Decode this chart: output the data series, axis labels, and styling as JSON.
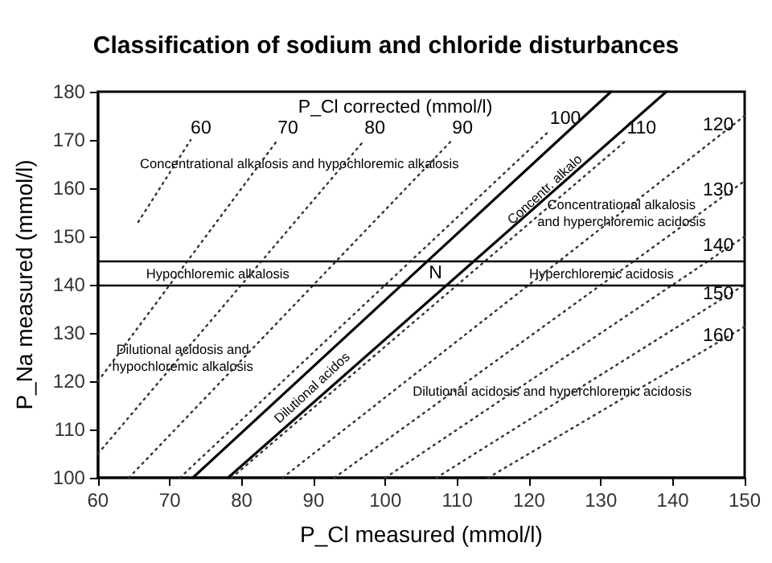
{
  "chart_data": {
    "type": "line",
    "title": "Classification of sodium and chloride disturbances",
    "xlabel": "P_Cl measured (mmol/l)",
    "ylabel": "P_Na measured (mmol/l)",
    "legend_title": "P_Cl corrected (mmol/l)",
    "xlim": [
      60,
      150
    ],
    "xticks": [
      60,
      70,
      80,
      90,
      100,
      110,
      120,
      130,
      140,
      150
    ],
    "ylim": [
      100,
      180
    ],
    "yticks": [
      100,
      110,
      120,
      130,
      140,
      150,
      160,
      170,
      180
    ],
    "grid": false,
    "legend": false,
    "marker": "none",
    "series": [
      {
        "name": "60",
        "x": [
          65.6,
          72.9
        ],
        "values": [
          153,
          170
        ],
        "color": "#333333",
        "line_style": "dotted"
      },
      {
        "name": "70",
        "x": [
          60,
          85
        ],
        "values": [
          120,
          170
        ],
        "color": "#333333",
        "line_style": "dotted"
      },
      {
        "name": "80",
        "x": [
          60,
          97.1
        ],
        "values": [
          105,
          170
        ],
        "color": "#333333",
        "line_style": "dotted"
      },
      {
        "name": "90",
        "x": [
          64.3,
          109.3
        ],
        "values": [
          100,
          170
        ],
        "color": "#333333",
        "line_style": "dotted"
      },
      {
        "name": "100",
        "x": [
          71.4,
          122.9
        ],
        "values": [
          100,
          172
        ],
        "color": "#333333",
        "line_style": "dotted"
      },
      {
        "name": "110",
        "x": [
          78.6,
          133.6
        ],
        "values": [
          100,
          170
        ],
        "color": "#333333",
        "line_style": "dotted"
      },
      {
        "name": "120",
        "x": [
          85.7,
          150
        ],
        "values": [
          100,
          175
        ],
        "color": "#333333",
        "line_style": "dotted"
      },
      {
        "name": "130",
        "x": [
          92.9,
          150
        ],
        "values": [
          100,
          161.5
        ],
        "color": "#333333",
        "line_style": "dotted"
      },
      {
        "name": "140",
        "x": [
          100,
          150
        ],
        "values": [
          100,
          150
        ],
        "color": "#333333",
        "line_style": "dotted"
      },
      {
        "name": "150",
        "x": [
          107.1,
          150
        ],
        "values": [
          100,
          140
        ],
        "color": "#333333",
        "line_style": "dotted"
      },
      {
        "name": "160",
        "x": [
          114.3,
          150
        ],
        "values": [
          100,
          131.3
        ],
        "color": "#333333",
        "line_style": "dotted"
      },
      {
        "x": [
          73.2,
          131.4
        ],
        "values": [
          100,
          180
        ],
        "color": "#000000",
        "line_style": "solid"
      },
      {
        "x": [
          78.1,
          139.1
        ],
        "values": [
          100,
          180
        ],
        "color": "#000000",
        "line_style": "solid"
      }
    ],
    "ref_lines": [
      {
        "axis": "y",
        "value": 145,
        "color": "#000000"
      },
      {
        "axis": "y",
        "value": 140,
        "color": "#000000"
      }
    ],
    "annotations": [
      "Concentrational alkalosis and hypochloremic alkalosis",
      "Hypochloremic alkalosis",
      "N",
      "Hyperchloremic acidosis",
      "Concentrational alkalosis\nand hyperchloremic acidosis",
      "Dilutional acidosis and\nhypochloremic alkalosis",
      "Dilutional acidosis and hyperchloremic acidosis",
      "Concentr. alkalo",
      "Dilutional acidos"
    ]
  }
}
